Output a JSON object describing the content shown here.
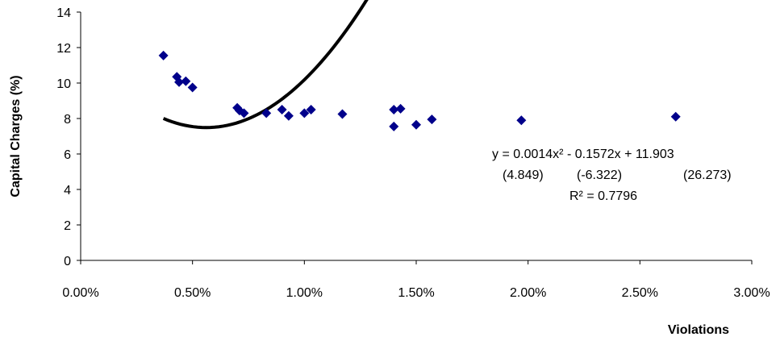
{
  "chart_data": {
    "type": "scatter",
    "xlabel": "Violations",
    "ylabel": "Capital Charges (%)",
    "xlim": [
      0,
      0.03
    ],
    "ylim": [
      0,
      14
    ],
    "x_ticks": [
      "0.00%",
      "0.50%",
      "1.00%",
      "1.50%",
      "2.00%",
      "2.50%",
      "3.00%"
    ],
    "y_ticks": [
      "0",
      "2",
      "4",
      "6",
      "8",
      "10",
      "12",
      "14"
    ],
    "grid": false,
    "legend": "none",
    "marker_color": "#00008B",
    "trendline_color": "#000000",
    "points": [
      {
        "x": 0.0037,
        "y": 11.55
      },
      {
        "x": 0.0043,
        "y": 10.35
      },
      {
        "x": 0.0044,
        "y": 10.05
      },
      {
        "x": 0.0047,
        "y": 10.1
      },
      {
        "x": 0.005,
        "y": 9.75
      },
      {
        "x": 0.007,
        "y": 8.6
      },
      {
        "x": 0.0071,
        "y": 8.45
      },
      {
        "x": 0.0073,
        "y": 8.3
      },
      {
        "x": 0.0083,
        "y": 8.3
      },
      {
        "x": 0.009,
        "y": 8.5
      },
      {
        "x": 0.0093,
        "y": 8.15
      },
      {
        "x": 0.01,
        "y": 8.3
      },
      {
        "x": 0.0103,
        "y": 8.5
      },
      {
        "x": 0.0117,
        "y": 8.25
      },
      {
        "x": 0.014,
        "y": 8.5
      },
      {
        "x": 0.014,
        "y": 7.55
      },
      {
        "x": 0.0143,
        "y": 8.55
      },
      {
        "x": 0.015,
        "y": 7.65
      },
      {
        "x": 0.0157,
        "y": 7.95
      },
      {
        "x": 0.0197,
        "y": 7.9
      },
      {
        "x": 0.0266,
        "y": 8.1
      }
    ],
    "trendline": {
      "type": "polynomial",
      "coefficients": {
        "a": 0.0014,
        "b": -0.1572,
        "c": 11.903
      },
      "x_unit_scale": 10000,
      "x_range": [
        0.0037,
        0.0266
      ]
    },
    "annotation": {
      "equation": "y = 0.0014x² - 0.1572x + 11.903",
      "t_stat_1": "(4.849)",
      "t_stat_2": "(-6.322)",
      "t_stat_3": "(26.273)",
      "r_squared": "R² = 0.7796"
    }
  }
}
